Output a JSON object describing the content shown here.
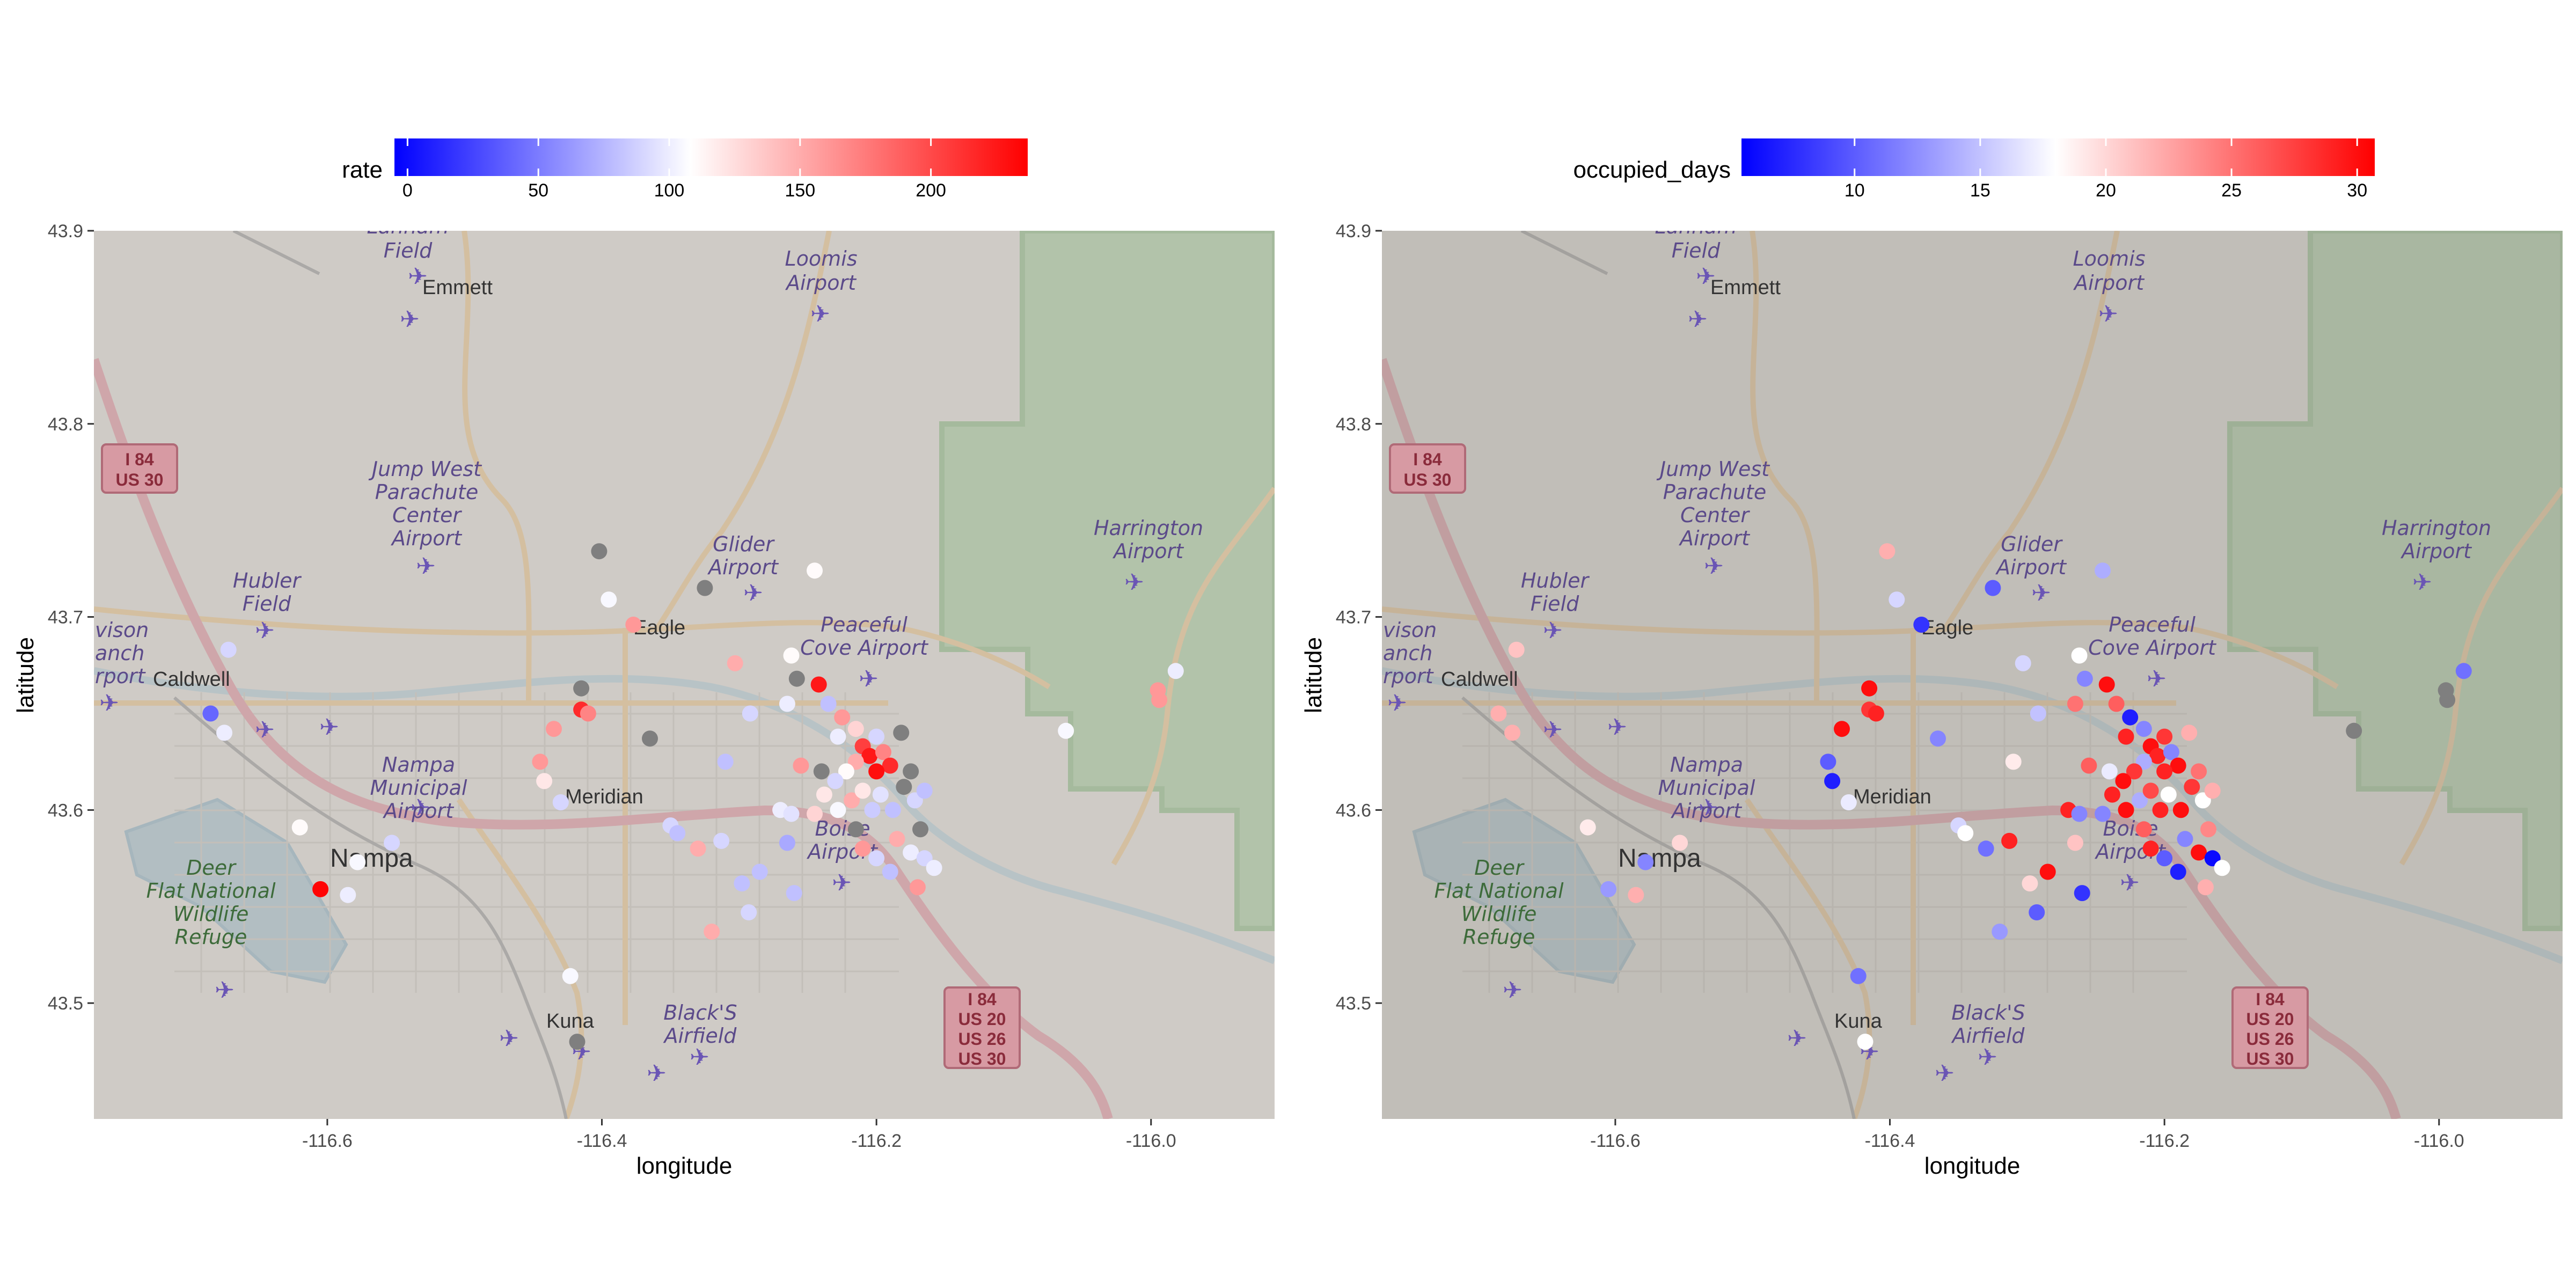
{
  "colors": {
    "low": "#0000ff",
    "mid": "#ffffff",
    "high": "#ff0000",
    "na": "#7f7f7f",
    "panel_bg": "#ffffff"
  },
  "map": {
    "labels": {
      "lanham": [
        "Lanham",
        "Field"
      ],
      "emmett": "Emmett",
      "loomis": [
        "Loomis",
        "Airport"
      ],
      "i84_us30": [
        "I 84",
        "US 30"
      ],
      "jump_west": [
        "Jump West",
        "Parachute",
        "Center",
        "Airport"
      ],
      "glider": [
        "Glider",
        "Airport"
      ],
      "harrington": [
        "Harrington",
        "Airport"
      ],
      "hubler": [
        "Hubler",
        "Field"
      ],
      "davison": [
        "vison",
        "anch",
        "rport"
      ],
      "eagle": "Eagle",
      "peaceful": [
        "Peaceful",
        "Cove Airport"
      ],
      "caldwell": "Caldwell",
      "nampa_muni": [
        "Nampa",
        "Municipal",
        "Airport"
      ],
      "meridian": "Meridian",
      "nampa": "Nampa",
      "deer_flat": [
        "Deer",
        "Flat National",
        "Wildlife",
        "Refuge"
      ],
      "boise": [
        "Boise",
        "Airport"
      ],
      "blacks": [
        "Black'S",
        "Airfield"
      ],
      "kuna": "Kuna",
      "i84_shield": [
        "I 84",
        "US 20",
        "US 26",
        "US 30"
      ]
    }
  },
  "chart_data": [
    {
      "type": "scatter",
      "title": "",
      "xlabel": "longitude",
      "ylabel": "latitude",
      "xlim": [
        -116.77,
        -115.91
      ],
      "ylim": [
        43.44,
        43.9
      ],
      "xticks": [
        -116.6,
        -116.4,
        -116.2,
        -116.0
      ],
      "xtick_labels": [
        "-116.6",
        "-116.4",
        "-116.2",
        "-116.0"
      ],
      "yticks": [
        43.5,
        43.6,
        43.7,
        43.8,
        43.9
      ],
      "ytick_labels": [
        "43.5",
        "43.6",
        "43.7",
        "43.8",
        "43.9"
      ],
      "legend": {
        "title": "rate",
        "position": "top",
        "limits": [
          -5,
          237
        ],
        "midpoint": 108,
        "breaks": [
          0,
          50,
          100,
          150,
          200
        ],
        "break_labels": [
          "0",
          "50",
          "100",
          "150",
          "200"
        ]
      },
      "points": [
        {
          "lon": -116.685,
          "lat": 43.65,
          "v": 40
        },
        {
          "lon": -116.675,
          "lat": 43.64,
          "v": 100
        },
        {
          "lon": -116.672,
          "lat": 43.683,
          "v": 90
        },
        {
          "lon": -116.605,
          "lat": 43.559,
          "v": 235
        },
        {
          "lon": -116.585,
          "lat": 43.556,
          "v": 100
        },
        {
          "lon": -116.578,
          "lat": 43.573,
          "v": 105
        },
        {
          "lon": -116.62,
          "lat": 43.591,
          "v": 110
        },
        {
          "lon": -116.553,
          "lat": 43.583,
          "v": 90
        },
        {
          "lon": -116.43,
          "lat": 43.604,
          "v": 90
        },
        {
          "lon": -116.445,
          "lat": 43.625,
          "v": 160
        },
        {
          "lon": -116.442,
          "lat": 43.615,
          "v": 120
        },
        {
          "lon": -116.435,
          "lat": 43.642,
          "v": 160
        },
        {
          "lon": -116.415,
          "lat": 43.652,
          "v": 215
        },
        {
          "lon": -116.41,
          "lat": 43.65,
          "v": 170
        },
        {
          "lon": -116.415,
          "lat": 43.663,
          "v": null
        },
        {
          "lon": -116.402,
          "lat": 43.734,
          "v": null
        },
        {
          "lon": -116.395,
          "lat": 43.709,
          "v": 105
        },
        {
          "lon": -116.377,
          "lat": 43.696,
          "v": 160
        },
        {
          "lon": -116.365,
          "lat": 43.637,
          "v": null
        },
        {
          "lon": -116.423,
          "lat": 43.514,
          "v": 105
        },
        {
          "lon": -116.418,
          "lat": 43.48,
          "v": null
        },
        {
          "lon": -116.35,
          "lat": 43.592,
          "v": 90
        },
        {
          "lon": -116.345,
          "lat": 43.588,
          "v": 80
        },
        {
          "lon": -116.33,
          "lat": 43.58,
          "v": 150
        },
        {
          "lon": -116.32,
          "lat": 43.537,
          "v": 150
        },
        {
          "lon": -116.313,
          "lat": 43.584,
          "v": 90
        },
        {
          "lon": -116.31,
          "lat": 43.625,
          "v": 80
        },
        {
          "lon": -116.298,
          "lat": 43.562,
          "v": 80
        },
        {
          "lon": -116.293,
          "lat": 43.547,
          "v": 90
        },
        {
          "lon": -116.285,
          "lat": 43.568,
          "v": 80
        },
        {
          "lon": -116.292,
          "lat": 43.65,
          "v": 90
        },
        {
          "lon": -116.27,
          "lat": 43.6,
          "v": 100
        },
        {
          "lon": -116.265,
          "lat": 43.583,
          "v": 70
        },
        {
          "lon": -116.262,
          "lat": 43.598,
          "v": 95
        },
        {
          "lon": -116.255,
          "lat": 43.623,
          "v": 160
        },
        {
          "lon": -116.245,
          "lat": 43.598,
          "v": 130
        },
        {
          "lon": -116.26,
          "lat": 43.557,
          "v": 80
        },
        {
          "lon": -116.325,
          "lat": 43.715,
          "v": null
        },
        {
          "lon": -116.303,
          "lat": 43.676,
          "v": 150
        },
        {
          "lon": -116.262,
          "lat": 43.68,
          "v": 110
        },
        {
          "lon": -116.245,
          "lat": 43.724,
          "v": 110
        },
        {
          "lon": -116.265,
          "lat": 43.655,
          "v": 100
        },
        {
          "lon": -116.258,
          "lat": 43.668,
          "v": null
        },
        {
          "lon": -116.242,
          "lat": 43.665,
          "v": 225
        },
        {
          "lon": -116.235,
          "lat": 43.655,
          "v": 80
        },
        {
          "lon": -116.225,
          "lat": 43.648,
          "v": 160
        },
        {
          "lon": -116.228,
          "lat": 43.638,
          "v": 100
        },
        {
          "lon": -116.215,
          "lat": 43.642,
          "v": 130
        },
        {
          "lon": -116.21,
          "lat": 43.633,
          "v": 205
        },
        {
          "lon": -116.205,
          "lat": 43.628,
          "v": 225
        },
        {
          "lon": -116.2,
          "lat": 43.638,
          "v": 90
        },
        {
          "lon": -116.195,
          "lat": 43.63,
          "v": 170
        },
        {
          "lon": -116.19,
          "lat": 43.623,
          "v": 215
        },
        {
          "lon": -116.2,
          "lat": 43.62,
          "v": 230
        },
        {
          "lon": -116.215,
          "lat": 43.625,
          "v": 150
        },
        {
          "lon": -116.222,
          "lat": 43.62,
          "v": 110
        },
        {
          "lon": -116.23,
          "lat": 43.615,
          "v": 90
        },
        {
          "lon": -116.24,
          "lat": 43.62,
          "v": null
        },
        {
          "lon": -116.238,
          "lat": 43.608,
          "v": 120
        },
        {
          "lon": -116.228,
          "lat": 43.6,
          "v": 105
        },
        {
          "lon": -116.218,
          "lat": 43.605,
          "v": 150
        },
        {
          "lon": -116.21,
          "lat": 43.61,
          "v": 120
        },
        {
          "lon": -116.203,
          "lat": 43.6,
          "v": 85
        },
        {
          "lon": -116.197,
          "lat": 43.608,
          "v": 95
        },
        {
          "lon": -116.188,
          "lat": 43.6,
          "v": 80
        },
        {
          "lon": -116.18,
          "lat": 43.612,
          "v": null
        },
        {
          "lon": -116.175,
          "lat": 43.62,
          "v": null
        },
        {
          "lon": -116.172,
          "lat": 43.605,
          "v": 90
        },
        {
          "lon": -116.168,
          "lat": 43.59,
          "v": null
        },
        {
          "lon": -116.165,
          "lat": 43.61,
          "v": 80
        },
        {
          "lon": -116.185,
          "lat": 43.585,
          "v": 150
        },
        {
          "lon": -116.175,
          "lat": 43.578,
          "v": 100
        },
        {
          "lon": -116.2,
          "lat": 43.575,
          "v": 90
        },
        {
          "lon": -116.21,
          "lat": 43.58,
          "v": 160
        },
        {
          "lon": -116.19,
          "lat": 43.568,
          "v": 80
        },
        {
          "lon": -116.215,
          "lat": 43.59,
          "v": null
        },
        {
          "lon": -116.17,
          "lat": 43.56,
          "v": 160
        },
        {
          "lon": -116.165,
          "lat": 43.575,
          "v": 90
        },
        {
          "lon": -116.158,
          "lat": 43.57,
          "v": 100
        },
        {
          "lon": -116.182,
          "lat": 43.64,
          "v": null
        },
        {
          "lon": -116.062,
          "lat": 43.641,
          "v": 105
        },
        {
          "lon": -115.982,
          "lat": 43.672,
          "v": 100
        },
        {
          "lon": -115.995,
          "lat": 43.662,
          "v": 160
        },
        {
          "lon": -115.994,
          "lat": 43.657,
          "v": 160
        }
      ]
    },
    {
      "type": "scatter",
      "title": "",
      "xlabel": "longitude",
      "ylabel": "latitude",
      "xlim": [
        -116.77,
        -115.91
      ],
      "ylim": [
        43.44,
        43.9
      ],
      "xticks": [
        -116.6,
        -116.4,
        -116.2,
        -116.0
      ],
      "xtick_labels": [
        "-116.6",
        "-116.4",
        "-116.2",
        "-116.0"
      ],
      "yticks": [
        43.5,
        43.6,
        43.7,
        43.8,
        43.9
      ],
      "ytick_labels": [
        "43.5",
        "43.6",
        "43.7",
        "43.8",
        "43.9"
      ],
      "legend": {
        "title": "occupied_days",
        "position": "top",
        "limits": [
          5.5,
          30.7
        ],
        "midpoint": 18,
        "breaks": [
          10,
          15,
          20,
          25,
          30
        ],
        "break_labels": [
          "10",
          "15",
          "20",
          "25",
          "30"
        ]
      },
      "points": [
        {
          "lon": -116.685,
          "lat": 43.65,
          "v": 22
        },
        {
          "lon": -116.675,
          "lat": 43.64,
          "v": 22
        },
        {
          "lon": -116.672,
          "lat": 43.683,
          "v": 21
        },
        {
          "lon": -116.605,
          "lat": 43.559,
          "v": 13
        },
        {
          "lon": -116.585,
          "lat": 43.556,
          "v": 22
        },
        {
          "lon": -116.578,
          "lat": 43.573,
          "v": 12
        },
        {
          "lon": -116.62,
          "lat": 43.591,
          "v": 19
        },
        {
          "lon": -116.553,
          "lat": 43.583,
          "v": 20
        },
        {
          "lon": -116.43,
          "lat": 43.604,
          "v": 17
        },
        {
          "lon": -116.445,
          "lat": 43.625,
          "v": 10
        },
        {
          "lon": -116.442,
          "lat": 43.615,
          "v": 7
        },
        {
          "lon": -116.435,
          "lat": 43.642,
          "v": 30
        },
        {
          "lon": -116.415,
          "lat": 43.652,
          "v": 28
        },
        {
          "lon": -116.41,
          "lat": 43.65,
          "v": 29
        },
        {
          "lon": -116.415,
          "lat": 43.663,
          "v": 30
        },
        {
          "lon": -116.402,
          "lat": 43.734,
          "v": 22
        },
        {
          "lon": -116.395,
          "lat": 43.709,
          "v": 16
        },
        {
          "lon": -116.377,
          "lat": 43.696,
          "v": 8
        },
        {
          "lon": -116.365,
          "lat": 43.637,
          "v": 12
        },
        {
          "lon": -116.423,
          "lat": 43.514,
          "v": 11
        },
        {
          "lon": -116.418,
          "lat": 43.48,
          "v": 18
        },
        {
          "lon": -116.35,
          "lat": 43.592,
          "v": 16
        },
        {
          "lon": -116.345,
          "lat": 43.588,
          "v": 18
        },
        {
          "lon": -116.33,
          "lat": 43.58,
          "v": 11
        },
        {
          "lon": -116.32,
          "lat": 43.537,
          "v": 13
        },
        {
          "lon": -116.313,
          "lat": 43.584,
          "v": 29
        },
        {
          "lon": -116.31,
          "lat": 43.625,
          "v": 19
        },
        {
          "lon": -116.298,
          "lat": 43.562,
          "v": 20
        },
        {
          "lon": -116.293,
          "lat": 43.547,
          "v": 10
        },
        {
          "lon": -116.285,
          "lat": 43.568,
          "v": 30
        },
        {
          "lon": -116.292,
          "lat": 43.65,
          "v": 15
        },
        {
          "lon": -116.27,
          "lat": 43.6,
          "v": 29
        },
        {
          "lon": -116.265,
          "lat": 43.583,
          "v": 21
        },
        {
          "lon": -116.262,
          "lat": 43.598,
          "v": 12
        },
        {
          "lon": -116.255,
          "lat": 43.623,
          "v": 26
        },
        {
          "lon": -116.245,
          "lat": 43.598,
          "v": 12
        },
        {
          "lon": -116.26,
          "lat": 43.557,
          "v": 8
        },
        {
          "lon": -116.325,
          "lat": 43.715,
          "v": 10
        },
        {
          "lon": -116.303,
          "lat": 43.676,
          "v": 16
        },
        {
          "lon": -116.262,
          "lat": 43.68,
          "v": 18
        },
        {
          "lon": -116.245,
          "lat": 43.724,
          "v": 14
        },
        {
          "lon": -116.265,
          "lat": 43.655,
          "v": 25
        },
        {
          "lon": -116.258,
          "lat": 43.668,
          "v": 12
        },
        {
          "lon": -116.242,
          "lat": 43.665,
          "v": 30
        },
        {
          "lon": -116.235,
          "lat": 43.655,
          "v": 26
        },
        {
          "lon": -116.225,
          "lat": 43.648,
          "v": 7
        },
        {
          "lon": -116.228,
          "lat": 43.638,
          "v": 29
        },
        {
          "lon": -116.215,
          "lat": 43.642,
          "v": 12
        },
        {
          "lon": -116.21,
          "lat": 43.633,
          "v": 30
        },
        {
          "lon": -116.205,
          "lat": 43.628,
          "v": 29
        },
        {
          "lon": -116.2,
          "lat": 43.638,
          "v": 28
        },
        {
          "lon": -116.195,
          "lat": 43.63,
          "v": 12
        },
        {
          "lon": -116.19,
          "lat": 43.623,
          "v": 30
        },
        {
          "lon": -116.2,
          "lat": 43.62,
          "v": 29
        },
        {
          "lon": -116.215,
          "lat": 43.625,
          "v": 14
        },
        {
          "lon": -116.222,
          "lat": 43.62,
          "v": 28
        },
        {
          "lon": -116.23,
          "lat": 43.615,
          "v": 30
        },
        {
          "lon": -116.24,
          "lat": 43.62,
          "v": 17
        },
        {
          "lon": -116.238,
          "lat": 43.608,
          "v": 29
        },
        {
          "lon": -116.228,
          "lat": 43.6,
          "v": 30
        },
        {
          "lon": -116.218,
          "lat": 43.605,
          "v": 14
        },
        {
          "lon": -116.21,
          "lat": 43.61,
          "v": 27
        },
        {
          "lon": -116.203,
          "lat": 43.6,
          "v": 29
        },
        {
          "lon": -116.197,
          "lat": 43.608,
          "v": 18
        },
        {
          "lon": -116.188,
          "lat": 43.6,
          "v": 30
        },
        {
          "lon": -116.18,
          "lat": 43.612,
          "v": 28
        },
        {
          "lon": -116.175,
          "lat": 43.62,
          "v": 25
        },
        {
          "lon": -116.172,
          "lat": 43.605,
          "v": 18
        },
        {
          "lon": -116.168,
          "lat": 43.59,
          "v": 24
        },
        {
          "lon": -116.165,
          "lat": 43.61,
          "v": 22
        },
        {
          "lon": -116.185,
          "lat": 43.585,
          "v": 12
        },
        {
          "lon": -116.175,
          "lat": 43.578,
          "v": 30
        },
        {
          "lon": -116.2,
          "lat": 43.575,
          "v": 10
        },
        {
          "lon": -116.21,
          "lat": 43.58,
          "v": 29
        },
        {
          "lon": -116.19,
          "lat": 43.568,
          "v": 7
        },
        {
          "lon": -116.215,
          "lat": 43.59,
          "v": 26
        },
        {
          "lon": -116.17,
          "lat": 43.56,
          "v": 22
        },
        {
          "lon": -116.165,
          "lat": 43.575,
          "v": 6
        },
        {
          "lon": -116.158,
          "lat": 43.57,
          "v": 18
        },
        {
          "lon": -116.182,
          "lat": 43.64,
          "v": 22
        },
        {
          "lon": -116.062,
          "lat": 43.641,
          "v": null
        },
        {
          "lon": -115.982,
          "lat": 43.672,
          "v": 11
        },
        {
          "lon": -115.995,
          "lat": 43.662,
          "v": null
        },
        {
          "lon": -115.994,
          "lat": 43.657,
          "v": null
        }
      ]
    }
  ]
}
